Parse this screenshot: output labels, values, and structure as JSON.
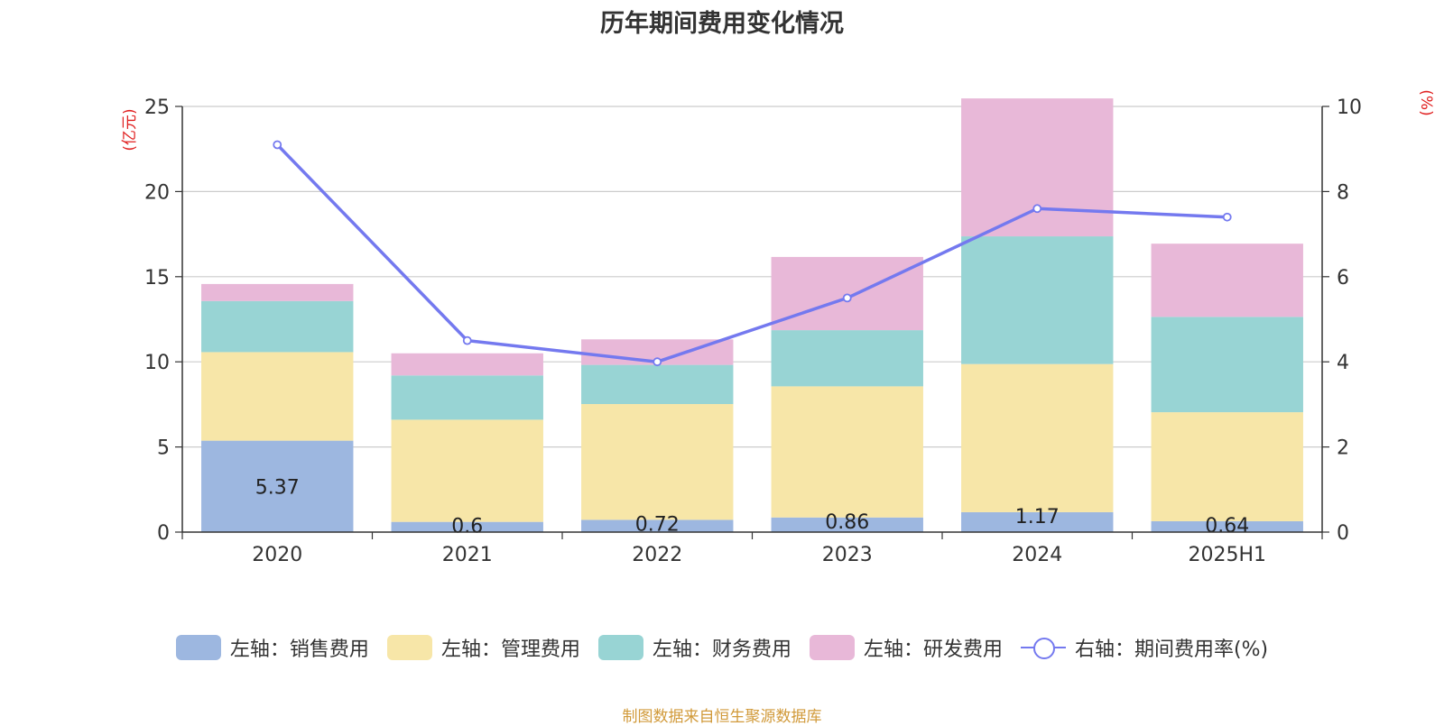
{
  "title": "历年期间费用变化情况",
  "source": "制图数据来自恒生聚源数据库",
  "chart_data": {
    "type": "bar",
    "categories": [
      "2020",
      "2021",
      "2022",
      "2023",
      "2024",
      "2025H1"
    ],
    "series": [
      {
        "name": "左轴：销售费用",
        "axis": "left",
        "values": [
          5.37,
          0.6,
          0.72,
          0.86,
          1.17,
          0.64
        ],
        "color": "#9db7e0"
      },
      {
        "name": "左轴：管理费用",
        "axis": "left",
        "values": [
          5.2,
          6.0,
          6.8,
          7.7,
          8.7,
          6.4
        ],
        "color": "#f7e6a8"
      },
      {
        "name": "左轴：财务费用",
        "axis": "left",
        "values": [
          3.0,
          2.6,
          2.3,
          3.3,
          7.5,
          5.6
        ],
        "color": "#98d4d4"
      },
      {
        "name": "左轴：研发费用",
        "axis": "left",
        "values": [
          1.0,
          1.3,
          1.5,
          4.3,
          8.1,
          4.3
        ],
        "color": "#e8b8d8"
      },
      {
        "name": "右轴：期间费用率(%)",
        "axis": "right",
        "type": "line",
        "values": [
          9.1,
          4.5,
          4.0,
          5.5,
          7.6,
          7.4
        ],
        "color": "#7479ef"
      }
    ],
    "data_labels": [
      "5.37",
      "0.6",
      "0.72",
      "0.86",
      "1.17",
      "0.64"
    ],
    "y_left": {
      "label": "(亿元)",
      "ylim": [
        0,
        25
      ],
      "ticks": [
        "0",
        "5",
        "10",
        "15",
        "20",
        "25"
      ]
    },
    "y_right": {
      "label": "(%)",
      "ylim": [
        0,
        10
      ],
      "ticks": [
        "0",
        "2",
        "4",
        "6",
        "8",
        "10"
      ]
    },
    "grid": true,
    "legend_position": "bottom"
  }
}
